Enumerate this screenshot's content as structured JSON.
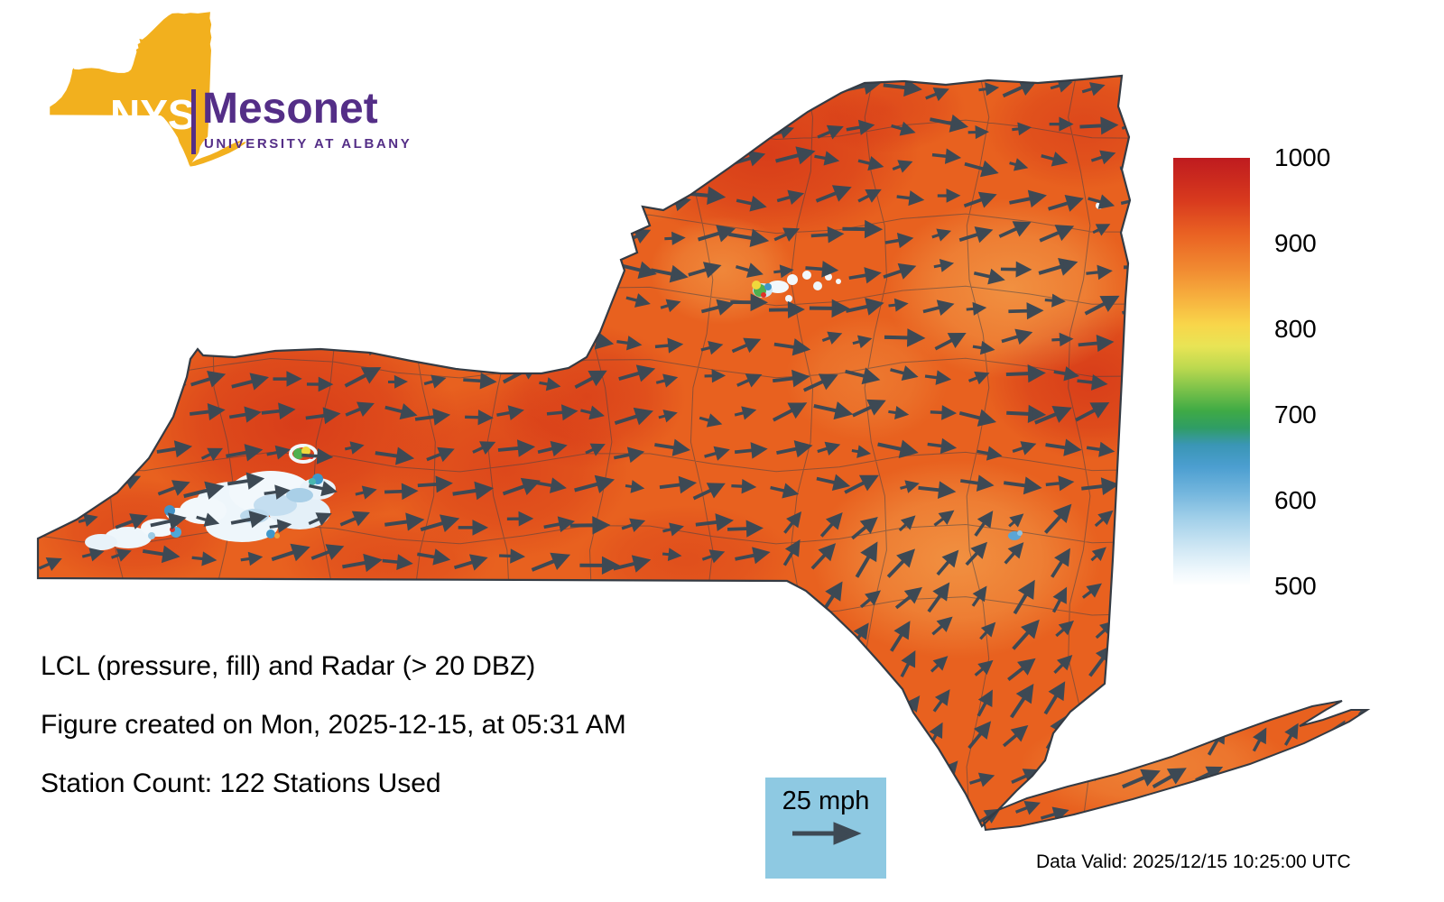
{
  "logo": {
    "acronym": "NYS",
    "name": "Mesonet",
    "affiliation": "UNIVERSITY AT ALBANY"
  },
  "captions": {
    "variable": "LCL (pressure, fill) and Radar (> 20 DBZ)",
    "created": "Figure created on Mon, 2025-12-15, at 05:31 AM",
    "stations": "Station Count: 122 Stations Used"
  },
  "wind_legend": {
    "label": "25 mph"
  },
  "footer": {
    "data_valid": "Data Valid: 2025/12/15 10:25:00 UTC"
  },
  "colorbar": {
    "ticks": [
      "1000",
      "900",
      "800",
      "700",
      "600",
      "500"
    ],
    "gradient": [
      [
        "#bf1b1f",
        0
      ],
      [
        "#d83a1e",
        10
      ],
      [
        "#ea6323",
        18
      ],
      [
        "#f18a31",
        26
      ],
      [
        "#f7b23f",
        33
      ],
      [
        "#f8d64a",
        39
      ],
      [
        "#e8e455",
        44
      ],
      [
        "#bcd94f",
        49
      ],
      [
        "#7cc24a",
        54
      ],
      [
        "#3faa45",
        59
      ],
      [
        "#2f9d64",
        63
      ],
      [
        "#3a96b5",
        67
      ],
      [
        "#4b9ed0",
        72
      ],
      [
        "#72b5dd",
        78
      ],
      [
        "#a0cfe9",
        84
      ],
      [
        "#cfe7f4",
        91
      ],
      [
        "#f2f9fd",
        97
      ],
      [
        "#ffffff",
        100
      ]
    ]
  },
  "colors": {
    "map_base": "#e8611f",
    "outline": "#343b44",
    "arrow": "#3d4954",
    "county_line": "#38404a",
    "legend_bg": "#8ec9e2",
    "logo_gold": "#f2b01e",
    "logo_purple": "#542e87"
  }
}
